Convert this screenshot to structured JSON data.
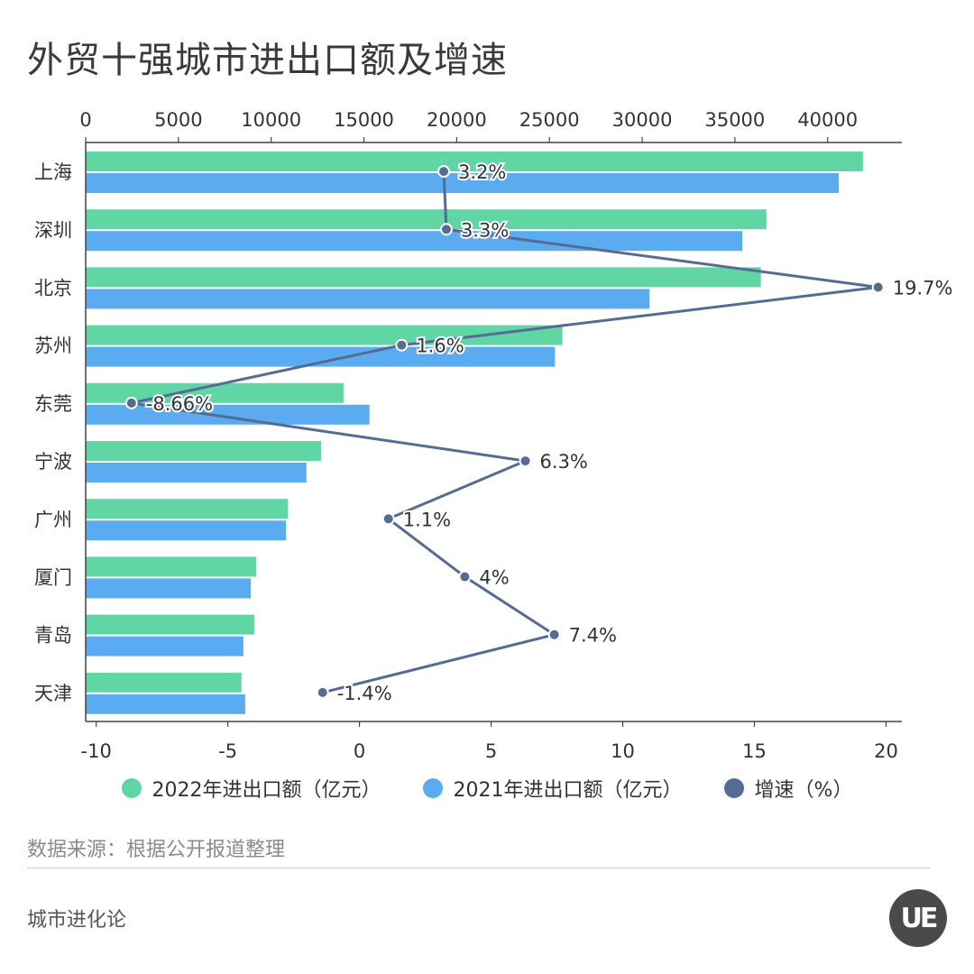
{
  "page": {
    "title": "外贸十强城市进出口额及增速",
    "source": "数据来源：根据公开报道整理",
    "brand": "城市进化论",
    "logo_text": "UE"
  },
  "legend": [
    {
      "label": "2022年进出口额（亿元）",
      "color": "#5fd6a3"
    },
    {
      "label": "2021年进出口额（亿元）",
      "color": "#5aabf0"
    },
    {
      "label": "增速（%）",
      "color": "#556b93"
    }
  ],
  "chart_data": {
    "type": "bar",
    "orientation": "horizontal",
    "categories": [
      "上海",
      "深圳",
      "北京",
      "苏州",
      "东莞",
      "宁波",
      "广州",
      "厦门",
      "青岛",
      "天津"
    ],
    "series": [
      {
        "name": "2022年进出口额（亿元）",
        "type": "bar",
        "axis": "top",
        "color": "#5fd6a3",
        "values": [
          41900,
          36700,
          36400,
          25700,
          13900,
          12700,
          10900,
          9200,
          9100,
          8400
        ]
      },
      {
        "name": "2021年进出口额（亿元）",
        "type": "bar",
        "axis": "top",
        "color": "#5aabf0",
        "values": [
          40600,
          35400,
          30400,
          25300,
          15300,
          11900,
          10800,
          8900,
          8500,
          8600
        ]
      },
      {
        "name": "增速（%）",
        "type": "line",
        "axis": "bottom",
        "color": "#556b93",
        "values": [
          3.2,
          3.3,
          19.7,
          1.6,
          -8.66,
          6.3,
          1.1,
          4,
          7.4,
          -1.4
        ],
        "labels": [
          "3.2%",
          "3.3%",
          "19.7%",
          "1.6%",
          "-8.66%",
          "6.3%",
          "1.1%",
          "4%",
          "7.4%",
          "-1.4%"
        ]
      }
    ],
    "top_axis": {
      "min": 0,
      "max": 44000,
      "ticks": [
        0,
        5000,
        10000,
        15000,
        20000,
        25000,
        30000,
        35000,
        40000
      ],
      "tick_labels": [
        "0",
        "5000",
        "10000",
        "15000",
        "20000",
        "25000",
        "30000",
        "35000",
        "40000"
      ]
    },
    "bottom_axis": {
      "min": -10.4,
      "max": 20.6,
      "ticks": [
        -10,
        -5,
        0,
        5,
        10,
        15,
        20
      ],
      "tick_labels": [
        "-10",
        "-5",
        "0",
        "5",
        "10",
        "15",
        "20"
      ]
    },
    "grid": false,
    "legend_position": "bottom"
  }
}
